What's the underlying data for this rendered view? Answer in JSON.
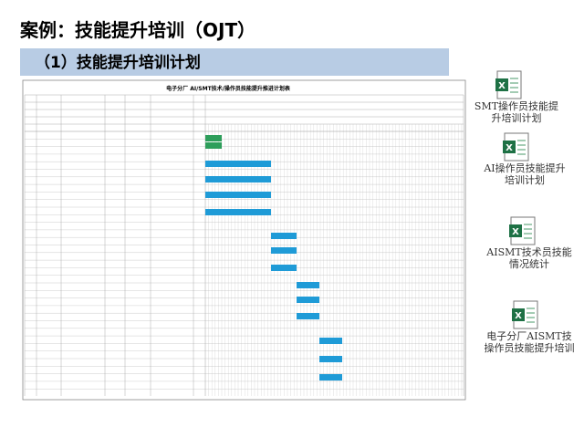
{
  "header": {
    "title": "案例：技能提升培训（OJT）",
    "subtitle": "（1）技能提升培训计划"
  },
  "sheet": {
    "title": "电子分厂 AI/SMT技术/操作员技能提升推进计划表"
  },
  "files": [
    {
      "lines": [
        "SMT操作员技能提",
        "升培训计划"
      ]
    },
    {
      "lines": [
        "AI操作员技能提升",
        "培训计划"
      ]
    },
    {
      "lines": [
        "AISMT技术员技能",
        "情况统计"
      ]
    },
    {
      "lines": [
        "电子分厂AISMT技",
        "操作员技能提升培训"
      ]
    }
  ]
}
